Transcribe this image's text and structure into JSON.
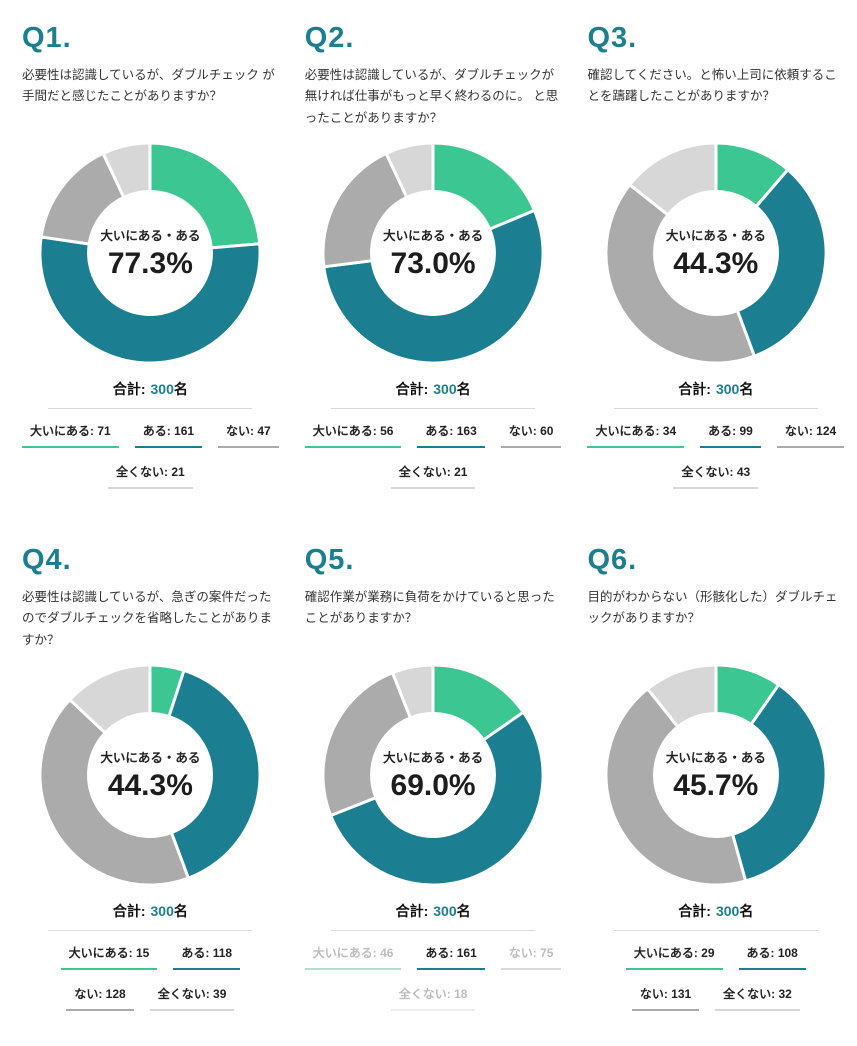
{
  "palette": {
    "green": "#3CC692",
    "teal": "#1B7F91",
    "gray": "#ABABAB",
    "light_gray": "#D7D7D7",
    "heading": "#1B7F91"
  },
  "chart_data": [
    {
      "type": "pie",
      "title": "Q1.",
      "question": "必要性は認識しているが、ダブルチェック が手間だと感じたことがありますか？",
      "center_label": "大いにある・ある",
      "center_value": "77.3%",
      "total_label": "合計:",
      "total_value": "300",
      "total_unit": "名",
      "categories": [
        "大いにある",
        "ある",
        "ない",
        "全くない"
      ],
      "values": [
        71,
        161,
        47,
        21
      ],
      "colors": [
        "#3CC692",
        "#1B7F91",
        "#ABABAB",
        "#D7D7D7"
      ],
      "muted": [
        false,
        false,
        false,
        false
      ],
      "legend_rows": [
        [
          0,
          1,
          2
        ],
        [
          3
        ]
      ]
    },
    {
      "type": "pie",
      "title": "Q2.",
      "question": "必要性は認識しているが、ダブルチェックが無ければ仕事がもっと早く終わるのに。 と思ったことがありますか？",
      "center_label": "大いにある・ある",
      "center_value": "73.0%",
      "total_label": "合計:",
      "total_value": "300",
      "total_unit": "名",
      "categories": [
        "大いにある",
        "ある",
        "ない",
        "全くない"
      ],
      "values": [
        56,
        163,
        60,
        21
      ],
      "colors": [
        "#3CC692",
        "#1B7F91",
        "#ABABAB",
        "#D7D7D7"
      ],
      "muted": [
        false,
        false,
        false,
        false
      ],
      "legend_rows": [
        [
          0,
          1,
          2
        ],
        [
          3
        ]
      ]
    },
    {
      "type": "pie",
      "title": "Q3.",
      "question": "確認してください。と怖い上司に依頼することを躊躇したことがありますか？",
      "center_label": "大いにある・ある",
      "center_value": "44.3%",
      "total_label": "合計:",
      "total_value": "300",
      "total_unit": "名",
      "categories": [
        "大いにある",
        "ある",
        "ない",
        "全くない"
      ],
      "values": [
        34,
        99,
        124,
        43
      ],
      "colors": [
        "#3CC692",
        "#1B7F91",
        "#ABABAB",
        "#D7D7D7"
      ],
      "muted": [
        false,
        false,
        false,
        false
      ],
      "legend_rows": [
        [
          0,
          1,
          2
        ],
        [
          3
        ]
      ]
    },
    {
      "type": "pie",
      "title": "Q4.",
      "question": "必要性は認識しているが、急ぎの案件だったのでダブルチェックを省略したことがありますか？",
      "center_label": "大いにある・ある",
      "center_value": "44.3%",
      "total_label": "合計:",
      "total_value": "300",
      "total_unit": "名",
      "categories": [
        "大いにある",
        "ある",
        "ない",
        "全くない"
      ],
      "values": [
        15,
        118,
        128,
        39
      ],
      "colors": [
        "#3CC692",
        "#1B7F91",
        "#ABABAB",
        "#D7D7D7"
      ],
      "muted": [
        false,
        false,
        false,
        false
      ],
      "legend_rows": [
        [
          0,
          1
        ],
        [
          2,
          3
        ]
      ]
    },
    {
      "type": "pie",
      "title": "Q5.",
      "question": "確認作業が業務に負荷をかけていると思ったことがありますか？",
      "center_label": "大いにある・ある",
      "center_value": "69.0%",
      "total_label": "合計:",
      "total_value": "300",
      "total_unit": "名",
      "categories": [
        "大いにある",
        "ある",
        "ない",
        "全くない"
      ],
      "values": [
        46,
        161,
        75,
        18
      ],
      "colors": [
        "#3CC692",
        "#1B7F91",
        "#ABABAB",
        "#D7D7D7"
      ],
      "muted": [
        true,
        false,
        true,
        true
      ],
      "legend_rows": [
        [
          0,
          1,
          2
        ],
        [
          3
        ]
      ]
    },
    {
      "type": "pie",
      "title": "Q6.",
      "question": "目的がわからない（形骸化した）ダブルチェックがありますか？",
      "center_label": "大いにある・ある",
      "center_value": "45.7%",
      "total_label": "合計:",
      "total_value": "300",
      "total_unit": "名",
      "categories": [
        "大いにある",
        "ある",
        "ない",
        "全くない"
      ],
      "values": [
        29,
        108,
        131,
        32
      ],
      "colors": [
        "#3CC692",
        "#1B7F91",
        "#ABABAB",
        "#D7D7D7"
      ],
      "muted": [
        false,
        false,
        false,
        false
      ],
      "legend_rows": [
        [
          0,
          1
        ],
        [
          2,
          3
        ]
      ]
    }
  ]
}
